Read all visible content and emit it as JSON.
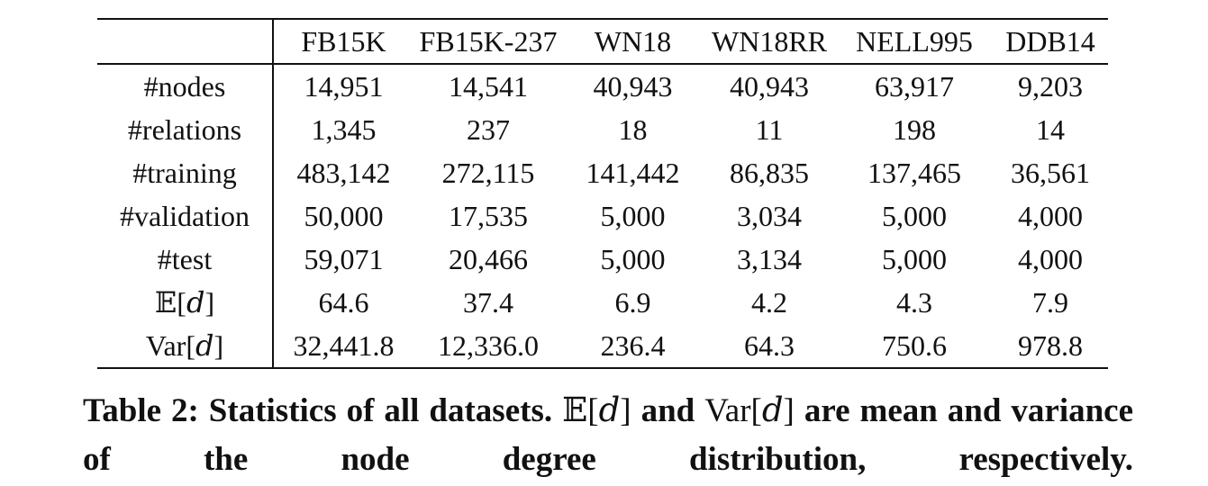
{
  "table": {
    "header": [
      "FB15K",
      "FB15K-237",
      "WN18",
      "WN18RR",
      "NELL995",
      "DDB14"
    ],
    "rows": [
      [
        "#nodes",
        "14,951",
        "14,541",
        "40,943",
        "40,943",
        "63,917",
        "9,203"
      ],
      [
        "#relations",
        "1,345",
        "237",
        "18",
        "11",
        "198",
        "14"
      ],
      [
        "#training",
        "483,142",
        "272,115",
        "141,442",
        "86,835",
        "137,465",
        "36,561"
      ],
      [
        "#validation",
        "50,000",
        "17,535",
        "5,000",
        "3,034",
        "5,000",
        "4,000"
      ],
      [
        "#test",
        "59,071",
        "20,466",
        "5,000",
        "3,134",
        "5,000",
        "4,000"
      ],
      [
        "𝔼[𝑑]",
        "64.6",
        "37.4",
        "6.9",
        "4.2",
        "4.3",
        "7.9"
      ],
      [
        "Var[𝑑]",
        "32,441.8",
        "12,336.0",
        "236.4",
        "64.3",
        "750.6",
        "978.8"
      ]
    ]
  },
  "caption": {
    "parts": [
      "Table 2: Statistics of all datasets.",
      "𝔼[𝑑]",
      "and",
      "Var[𝑑]",
      "are mean and variance of the node degree distribution, respectively."
    ]
  }
}
